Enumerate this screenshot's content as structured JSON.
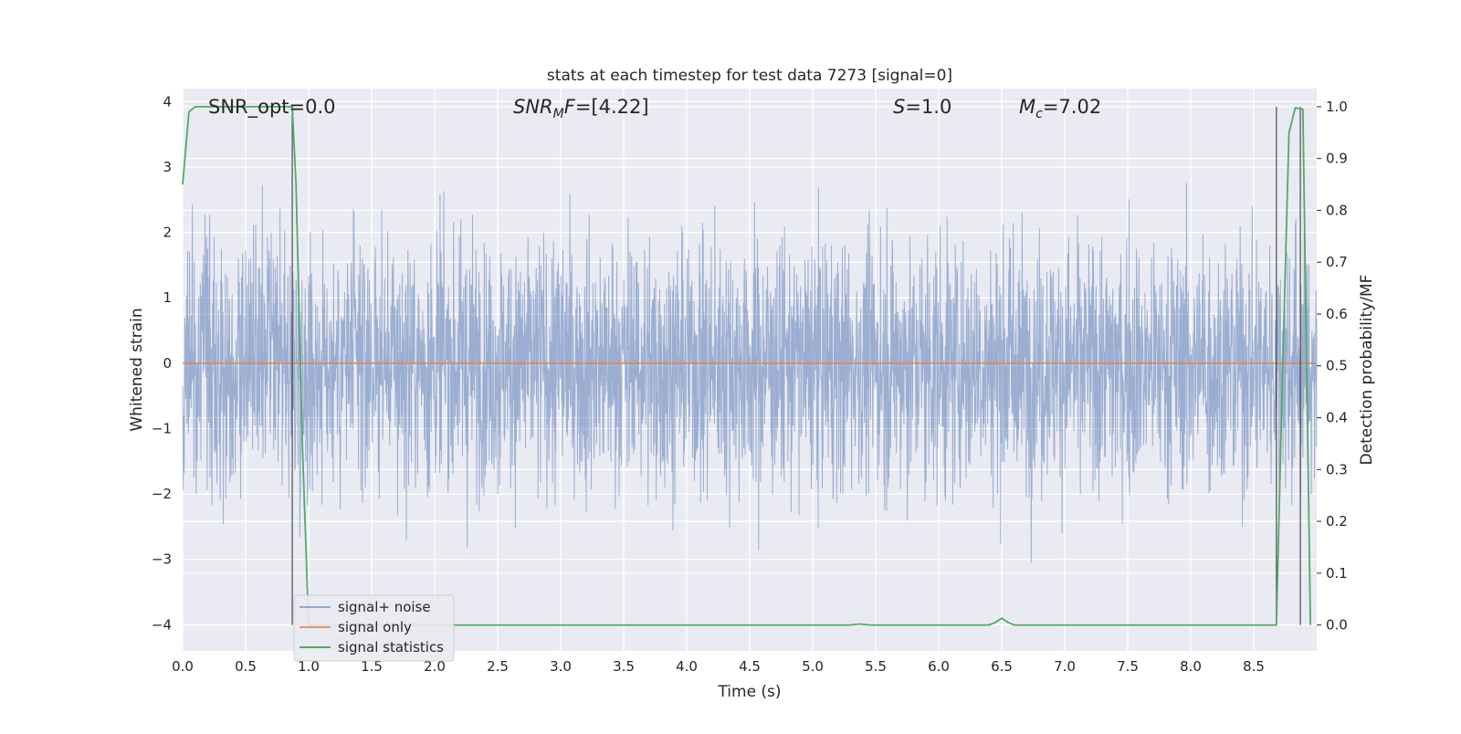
{
  "chart_data": {
    "type": "line",
    "title": "stats at each timestep for test data 7273 [signal=0]",
    "xlabel": "Time (s)",
    "ylabel": "Whitened strain",
    "y2label": "Detection probability/MF",
    "xlim": [
      0.0,
      9.0
    ],
    "ylim": [
      -4.4,
      4.2
    ],
    "y2lim": [
      -0.05,
      1.035
    ],
    "xticks": [
      0.0,
      0.5,
      1.0,
      1.5,
      2.0,
      2.5,
      3.0,
      3.5,
      4.0,
      4.5,
      5.0,
      5.5,
      6.0,
      6.5,
      7.0,
      7.5,
      8.0,
      8.5
    ],
    "xtick_labels": [
      "0.0",
      "0.5",
      "1.0",
      "1.5",
      "2.0",
      "2.5",
      "3.0",
      "3.5",
      "4.0",
      "4.5",
      "5.0",
      "5.5",
      "6.0",
      "6.5",
      "7.0",
      "7.5",
      "8.0",
      "8.5"
    ],
    "yticks": [
      4,
      3,
      2,
      1,
      0,
      -1,
      -2,
      -3,
      -4
    ],
    "ytick_labels": [
      "4",
      "3",
      "2",
      "1",
      "0",
      "−1",
      "−2",
      "−3",
      "−4"
    ],
    "y2ticks": [
      1.0,
      0.9,
      0.8,
      0.7,
      0.6,
      0.5,
      0.4,
      0.3,
      0.2,
      0.1,
      0.0
    ],
    "y2tick_labels": [
      "1.0",
      "0.9",
      "0.8",
      "0.7",
      "0.6",
      "0.5",
      "0.4",
      "0.3",
      "0.2",
      "0.1",
      "0.0"
    ],
    "grid": true,
    "legend_position": "lower-left",
    "series": [
      {
        "name": "signal+ noise",
        "axis": "left",
        "color": "#4c72b0",
        "kind": "noise",
        "envelope_sigma": 1.0
      },
      {
        "name": "signal only",
        "axis": "left",
        "color": "#dd8452",
        "x": [
          0.0,
          9.0
        ],
        "y": [
          0.0,
          0.0
        ]
      },
      {
        "name": "signal statistics",
        "axis": "right",
        "color": "#55a868",
        "x": [
          0.0,
          0.05,
          0.1,
          0.2,
          0.4,
          0.6,
          0.8,
          0.87,
          0.9,
          0.95,
          1.0,
          1.5,
          2.0,
          3.0,
          4.0,
          5.0,
          5.3,
          5.37,
          5.45,
          6.0,
          6.4,
          6.45,
          6.5,
          6.55,
          6.6,
          6.7,
          7.0,
          8.0,
          8.5,
          8.68,
          8.73,
          8.78,
          8.83,
          8.89,
          8.92,
          8.95
        ],
        "y": [
          0.85,
          0.99,
          1.0,
          1.0,
          1.0,
          1.0,
          1.0,
          1.0,
          0.85,
          0.35,
          0.0,
          0.0,
          0.0,
          0.0,
          0.0,
          0.0,
          0.0,
          0.002,
          0.0,
          0.0,
          0.0,
          0.005,
          0.013,
          0.005,
          0.0,
          0.0,
          0.0,
          0.0,
          0.0,
          0.0,
          0.5,
          0.95,
          0.998,
          0.995,
          0.5,
          0.0
        ]
      }
    ],
    "vlines": [
      0.87,
      8.68,
      8.87
    ],
    "annotations": [
      {
        "text": "SNR_opt=0.0",
        "x": 0.2
      },
      {
        "text": "SNR_MF=[4.22]",
        "x": 2.6
      },
      {
        "text": "S=1.0",
        "x": 5.6
      },
      {
        "text": "M_c=7.02",
        "x": 6.6
      }
    ]
  }
}
